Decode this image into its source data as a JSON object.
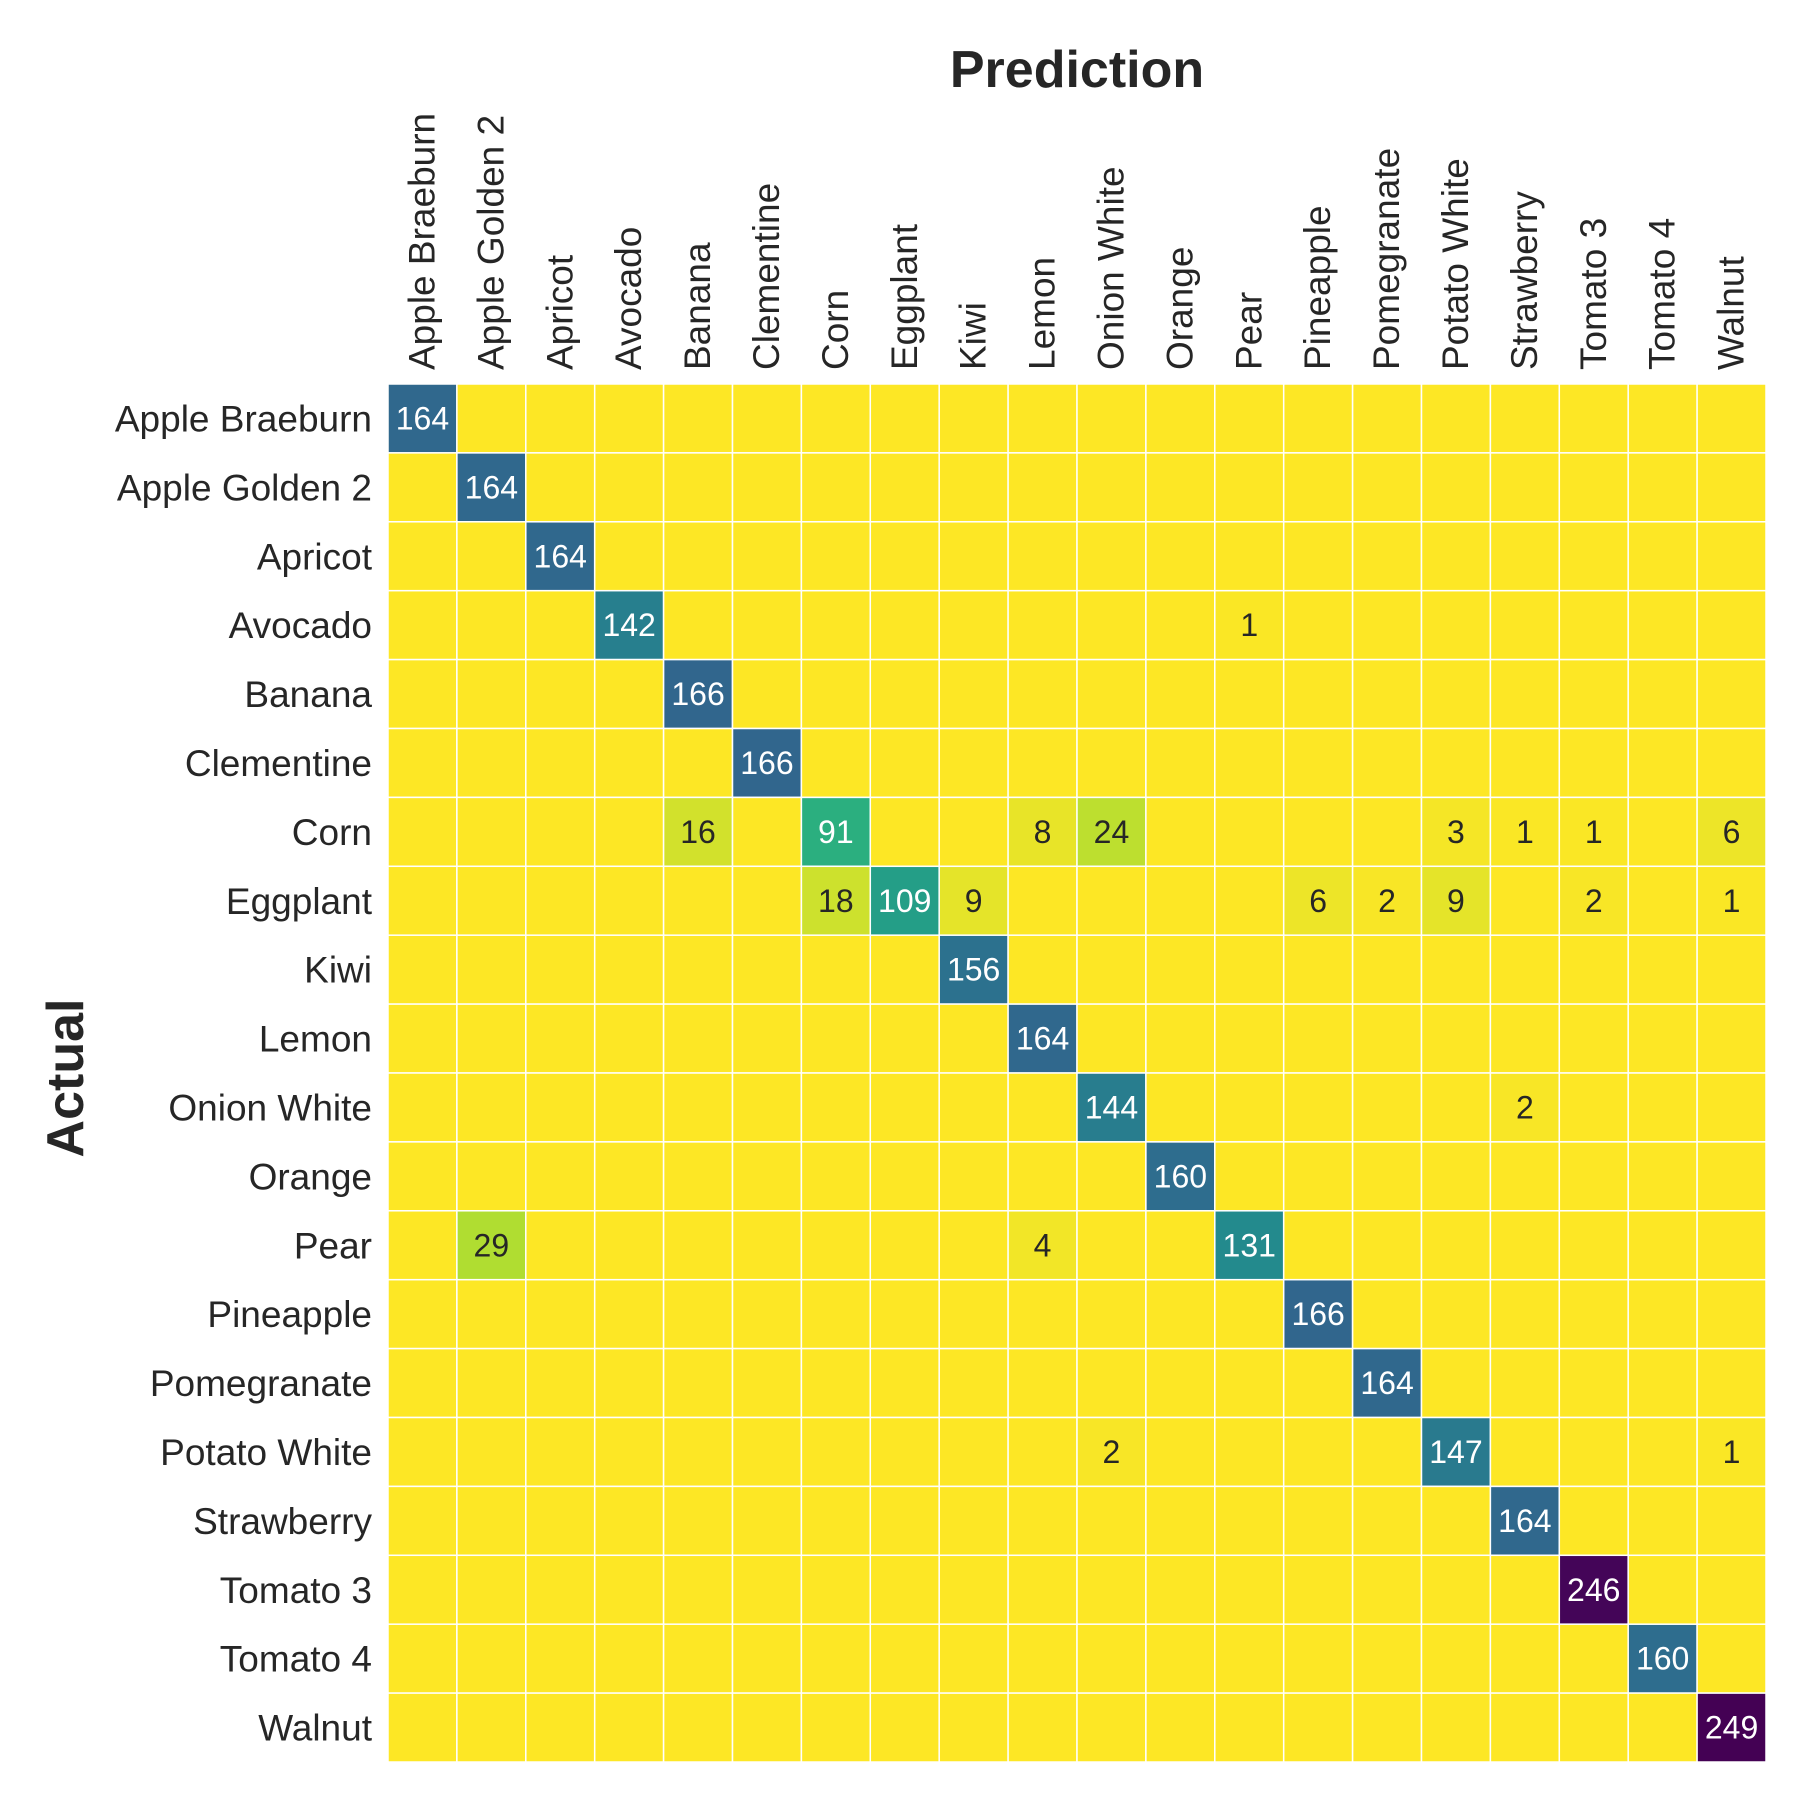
{
  "chart_data": {
    "type": "heatmap",
    "title": "",
    "xlabel": "Prediction",
    "ylabel": "Actual",
    "x_categories": [
      "Apple Braeburn",
      "Apple Golden 2",
      "Apricot",
      "Avocado",
      "Banana",
      "Clementine",
      "Corn",
      "Eggplant",
      "Kiwi",
      "Lemon",
      "Onion White",
      "Orange",
      "Pear",
      "Pineapple",
      "Pomegranate",
      "Potato White",
      "Strawberry",
      "Tomato 3",
      "Tomato 4",
      "Walnut"
    ],
    "y_categories": [
      "Apple Braeburn",
      "Apple Golden 2",
      "Apricot",
      "Avocado",
      "Banana",
      "Clementine",
      "Corn",
      "Eggplant",
      "Kiwi",
      "Lemon",
      "Onion White",
      "Orange",
      "Pear",
      "Pineapple",
      "Pomegranate",
      "Potato White",
      "Strawberry",
      "Tomato 3",
      "Tomato 4",
      "Walnut"
    ],
    "values": [
      [
        164,
        0,
        0,
        0,
        0,
        0,
        0,
        0,
        0,
        0,
        0,
        0,
        0,
        0,
        0,
        0,
        0,
        0,
        0,
        0
      ],
      [
        0,
        164,
        0,
        0,
        0,
        0,
        0,
        0,
        0,
        0,
        0,
        0,
        0,
        0,
        0,
        0,
        0,
        0,
        0,
        0
      ],
      [
        0,
        0,
        164,
        0,
        0,
        0,
        0,
        0,
        0,
        0,
        0,
        0,
        0,
        0,
        0,
        0,
        0,
        0,
        0,
        0
      ],
      [
        0,
        0,
        0,
        142,
        0,
        0,
        0,
        0,
        0,
        0,
        0,
        0,
        1,
        0,
        0,
        0,
        0,
        0,
        0,
        0
      ],
      [
        0,
        0,
        0,
        0,
        166,
        0,
        0,
        0,
        0,
        0,
        0,
        0,
        0,
        0,
        0,
        0,
        0,
        0,
        0,
        0
      ],
      [
        0,
        0,
        0,
        0,
        0,
        166,
        0,
        0,
        0,
        0,
        0,
        0,
        0,
        0,
        0,
        0,
        0,
        0,
        0,
        0
      ],
      [
        0,
        0,
        0,
        0,
        16,
        0,
        91,
        0,
        0,
        8,
        24,
        0,
        0,
        0,
        0,
        3,
        1,
        1,
        0,
        6
      ],
      [
        0,
        0,
        0,
        0,
        0,
        0,
        18,
        109,
        9,
        0,
        0,
        0,
        0,
        6,
        2,
        9,
        0,
        2,
        0,
        1
      ],
      [
        0,
        0,
        0,
        0,
        0,
        0,
        0,
        0,
        156,
        0,
        0,
        0,
        0,
        0,
        0,
        0,
        0,
        0,
        0,
        0
      ],
      [
        0,
        0,
        0,
        0,
        0,
        0,
        0,
        0,
        0,
        164,
        0,
        0,
        0,
        0,
        0,
        0,
        0,
        0,
        0,
        0
      ],
      [
        0,
        0,
        0,
        0,
        0,
        0,
        0,
        0,
        0,
        0,
        144,
        0,
        0,
        0,
        0,
        0,
        2,
        0,
        0,
        0
      ],
      [
        0,
        0,
        0,
        0,
        0,
        0,
        0,
        0,
        0,
        0,
        0,
        160,
        0,
        0,
        0,
        0,
        0,
        0,
        0,
        0
      ],
      [
        0,
        29,
        0,
        0,
        0,
        0,
        0,
        0,
        0,
        4,
        0,
        0,
        131,
        0,
        0,
        0,
        0,
        0,
        0,
        0
      ],
      [
        0,
        0,
        0,
        0,
        0,
        0,
        0,
        0,
        0,
        0,
        0,
        0,
        0,
        166,
        0,
        0,
        0,
        0,
        0,
        0
      ],
      [
        0,
        0,
        0,
        0,
        0,
        0,
        0,
        0,
        0,
        0,
        0,
        0,
        0,
        0,
        164,
        0,
        0,
        0,
        0,
        0
      ],
      [
        0,
        0,
        0,
        0,
        0,
        0,
        0,
        0,
        0,
        0,
        2,
        0,
        0,
        0,
        0,
        147,
        0,
        0,
        0,
        1
      ],
      [
        0,
        0,
        0,
        0,
        0,
        0,
        0,
        0,
        0,
        0,
        0,
        0,
        0,
        0,
        0,
        0,
        164,
        0,
        0,
        0
      ],
      [
        0,
        0,
        0,
        0,
        0,
        0,
        0,
        0,
        0,
        0,
        0,
        0,
        0,
        0,
        0,
        0,
        0,
        246,
        0,
        0
      ],
      [
        0,
        0,
        0,
        0,
        0,
        0,
        0,
        0,
        0,
        0,
        0,
        0,
        0,
        0,
        0,
        0,
        0,
        0,
        160,
        0
      ],
      [
        0,
        0,
        0,
        0,
        0,
        0,
        0,
        0,
        0,
        0,
        0,
        0,
        0,
        0,
        0,
        0,
        0,
        0,
        0,
        249
      ]
    ],
    "zero_cells_labeled": false,
    "colormap": "viridis_r",
    "value_range": [
      0,
      249
    ],
    "colorbar": false,
    "grid_line_color": "#ffffff",
    "x_tick_labels_position": "top",
    "x_tick_labels_rotation": "vertical",
    "text_color_dark": "#262626",
    "text_color_light": "#ffffff"
  }
}
